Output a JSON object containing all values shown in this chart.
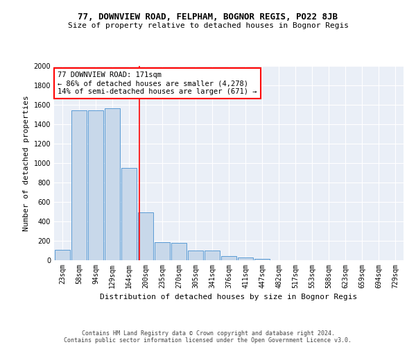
{
  "title1": "77, DOWNVIEW ROAD, FELPHAM, BOGNOR REGIS, PO22 8JB",
  "title2": "Size of property relative to detached houses in Bognor Regis",
  "xlabel": "Distribution of detached houses by size in Bognor Regis",
  "ylabel": "Number of detached properties",
  "categories": [
    "23sqm",
    "58sqm",
    "94sqm",
    "129sqm",
    "164sqm",
    "200sqm",
    "235sqm",
    "270sqm",
    "305sqm",
    "341sqm",
    "376sqm",
    "411sqm",
    "447sqm",
    "482sqm",
    "517sqm",
    "553sqm",
    "588sqm",
    "623sqm",
    "659sqm",
    "694sqm",
    "729sqm"
  ],
  "values": [
    110,
    1540,
    1540,
    1565,
    950,
    490,
    185,
    180,
    100,
    100,
    40,
    30,
    15,
    0,
    0,
    0,
    0,
    0,
    0,
    0,
    0
  ],
  "bar_color": "#c8d8ea",
  "bar_edge_color": "#5a9bd5",
  "property_line_x": 4.62,
  "property_line_color": "red",
  "annotation_text": "77 DOWNVIEW ROAD: 171sqm\n← 86% of detached houses are smaller (4,278)\n14% of semi-detached houses are larger (671) →",
  "annotation_box_color": "white",
  "annotation_box_edge_color": "red",
  "ylim": [
    0,
    2000
  ],
  "yticks": [
    0,
    200,
    400,
    600,
    800,
    1000,
    1200,
    1400,
    1600,
    1800,
    2000
  ],
  "background_color": "#eaeff7",
  "footer": "Contains HM Land Registry data © Crown copyright and database right 2024.\nContains public sector information licensed under the Open Government Licence v3.0.",
  "title1_fontsize": 9,
  "title2_fontsize": 8,
  "xlabel_fontsize": 8,
  "ylabel_fontsize": 8,
  "footer_fontsize": 6,
  "tick_fontsize": 7,
  "ann_fontsize": 7.5
}
